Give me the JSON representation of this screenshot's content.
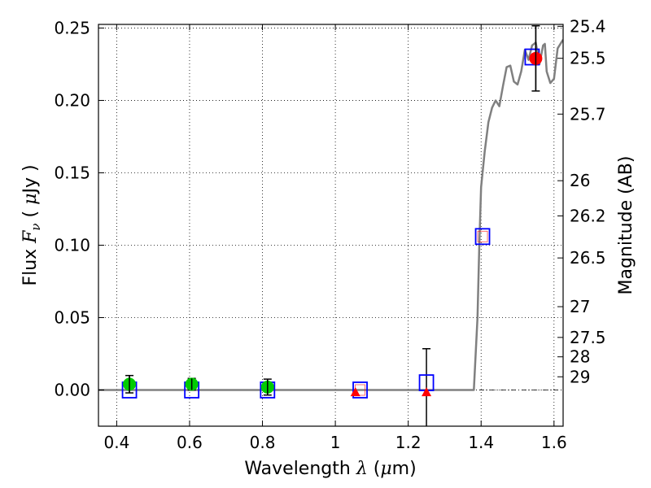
{
  "chart_data": {
    "type": "scatter",
    "title": "",
    "xlabel": {
      "prefix": "Wavelength",
      "symbol": "λ",
      "unit_open": " (",
      "unit_mu": "μ",
      "unit_rest": "m)"
    },
    "ylabel": {
      "prefix": "Flux",
      "symbol": "F",
      "subscript": "ν",
      "unit_open": "( ",
      "unit_mu": "μ",
      "unit_rest": "Jy )"
    },
    "y2label": "Magnitude (AB)",
    "xlim": [
      0.35,
      1.625
    ],
    "ylim": [
      -0.025,
      0.2525
    ],
    "grid": true,
    "x_ticks": [
      0.4,
      0.6,
      0.8,
      1.0,
      1.2,
      1.4,
      1.6
    ],
    "x_tick_labels": [
      "0.4",
      "0.6",
      "0.8",
      "1",
      "1.2",
      "1.4",
      "1.6"
    ],
    "y_ticks": [
      0.0,
      0.05,
      0.1,
      0.15,
      0.2,
      0.25
    ],
    "y_tick_labels": [
      "0.00",
      "0.05",
      "0.10",
      "0.15",
      "0.20",
      "0.25"
    ],
    "mag_ticks": [
      25.4,
      25.5,
      25.7,
      26,
      26.2,
      26.5,
      27,
      27.5,
      28,
      29
    ],
    "mag_tick_labels": [
      "25.4",
      "25.5",
      "25.7",
      "26",
      "26.2",
      "26.5",
      "27",
      "27.5",
      "28",
      "29"
    ],
    "observed": [
      {
        "x": 0.435,
        "y": 0.004,
        "err": 0.006,
        "color": "#00cc00",
        "marker": "circle"
      },
      {
        "x": 0.606,
        "y": 0.004,
        "err": 0.004,
        "color": "#00cc00",
        "marker": "circle"
      },
      {
        "x": 0.814,
        "y": 0.002,
        "err": 0.0055,
        "color": "#00cc00",
        "marker": "circle"
      },
      {
        "x": 1.055,
        "y": -0.0015,
        "err": 0,
        "color": "#ff0000",
        "marker": "triangle"
      },
      {
        "x": 1.25,
        "y": -0.0015,
        "err": 0.03,
        "color": "#ff0000",
        "marker": "triangle"
      },
      {
        "x": 1.55,
        "y": 0.229,
        "err": 0.0225,
        "color": "#ff0000",
        "marker": "circle"
      }
    ],
    "model_points": [
      {
        "x": 0.435,
        "y": 0.0
      },
      {
        "x": 0.606,
        "y": 0.0
      },
      {
        "x": 0.814,
        "y": 0.0
      },
      {
        "x": 1.068,
        "y": 0.0
      },
      {
        "x": 1.25,
        "y": 0.005
      },
      {
        "x": 1.404,
        "y": 0.106
      },
      {
        "x": 1.54,
        "y": 0.23
      }
    ],
    "model_curve": [
      [
        0.35,
        0.0
      ],
      [
        1.3,
        0.0
      ],
      [
        1.38,
        0.0
      ],
      [
        1.39,
        0.05
      ],
      [
        1.395,
        0.1
      ],
      [
        1.4,
        0.14
      ],
      [
        1.41,
        0.165
      ],
      [
        1.42,
        0.185
      ],
      [
        1.43,
        0.195
      ],
      [
        1.44,
        0.2
      ],
      [
        1.45,
        0.196
      ],
      [
        1.46,
        0.21
      ],
      [
        1.47,
        0.223
      ],
      [
        1.48,
        0.224
      ],
      [
        1.49,
        0.213
      ],
      [
        1.5,
        0.211
      ],
      [
        1.51,
        0.22
      ],
      [
        1.52,
        0.235
      ],
      [
        1.53,
        0.228
      ],
      [
        1.54,
        0.238
      ],
      [
        1.55,
        0.24
      ],
      [
        1.56,
        0.225
      ],
      [
        1.57,
        0.238
      ],
      [
        1.575,
        0.239
      ],
      [
        1.58,
        0.22
      ],
      [
        1.59,
        0.212
      ],
      [
        1.6,
        0.215
      ],
      [
        1.61,
        0.236
      ],
      [
        1.625,
        0.242
      ]
    ],
    "colors": {
      "model_curve": "#808080",
      "model_square": "#0000ff",
      "inner_square": "#ff0000",
      "dotted_line": "#000000"
    }
  }
}
